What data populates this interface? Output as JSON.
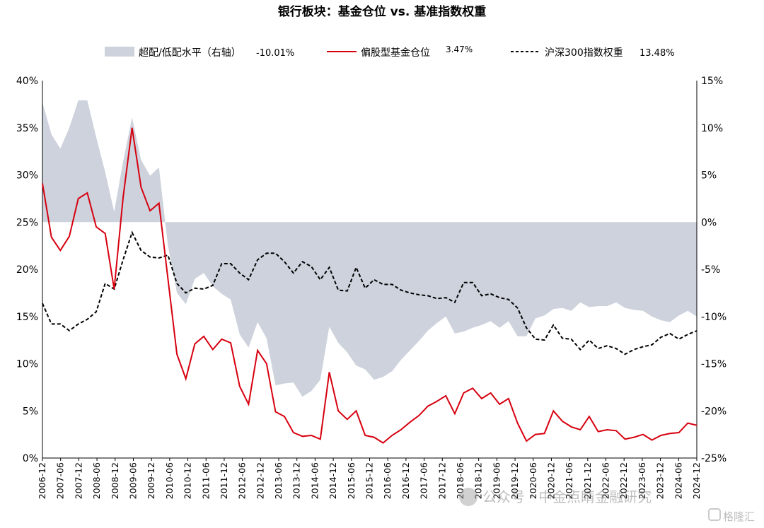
{
  "chart_data": {
    "type": "line",
    "title": "银行板块：基金仓位 vs. 基准指数权重",
    "legend": [
      {
        "key": "area",
        "label": "超配/低配水平（右轴）",
        "value": "-10.01%",
        "color": "#cdd2dc"
      },
      {
        "key": "fund",
        "label": "偏股型基金仓位",
        "value": "3.47%",
        "color": "#d7000f"
      },
      {
        "key": "csi",
        "label": "沪深300指数权重",
        "value": "13.48%",
        "color": "#000000"
      }
    ],
    "left_axis": {
      "min": 0,
      "max": 40,
      "ticks": [
        "0%",
        "5%",
        "10%",
        "15%",
        "20%",
        "25%",
        "30%",
        "35%",
        "40%"
      ]
    },
    "right_axis": {
      "min": -25,
      "max": 15,
      "ticks": [
        "-25%",
        "-20%",
        "-15%",
        "-10%",
        "-5%",
        "0%",
        "5%",
        "10%",
        "15%"
      ]
    },
    "x_tick_labels": [
      "2006-12",
      "2007-06",
      "2007-12",
      "2008-06",
      "2008-12",
      "2009-06",
      "2009-12",
      "2010-06",
      "2010-12",
      "2011-06",
      "2011-12",
      "2012-06",
      "2012-12",
      "2013-06",
      "2013-12",
      "2014-06",
      "2014-12",
      "2015-06",
      "2015-12",
      "2016-06",
      "2016-12",
      "2017-06",
      "2017-12",
      "2018-06",
      "2018-12",
      "2019-06",
      "2019-12",
      "2020-06",
      "2020-12",
      "2021-06",
      "2021-12",
      "2022-06",
      "2022-12",
      "2023-06",
      "2023-12",
      "2024-06",
      "2024-12"
    ],
    "series": [
      {
        "name": "偏股型基金仓位",
        "axis": "left",
        "values": [
          29.1,
          23.4,
          22.0,
          23.5,
          27.5,
          28.1,
          24.5,
          23.8,
          17.9,
          27.6,
          35.0,
          28.7,
          26.2,
          27.0,
          19.0,
          11.0,
          8.4,
          12.1,
          12.9,
          11.5,
          12.6,
          12.2,
          7.6,
          5.7,
          11.4,
          10.0,
          4.9,
          4.4,
          2.7,
          2.3,
          2.4,
          2.0,
          9.1,
          5.0,
          4.1,
          5.0,
          2.4,
          2.2,
          1.6,
          2.4,
          3.0,
          3.8,
          4.5,
          5.5,
          6.0,
          6.6,
          4.7,
          6.9,
          7.4,
          6.3,
          6.9,
          5.7,
          6.3,
          3.7,
          1.8,
          2.5,
          2.6,
          5.0,
          3.9,
          3.3,
          3.0,
          4.4,
          2.8,
          3.0,
          2.9,
          2.0,
          2.2,
          2.5,
          1.9,
          2.4,
          2.6,
          2.7,
          3.7,
          3.47
        ]
      },
      {
        "name": "沪深300指数权重",
        "axis": "left",
        "values": [
          16.4,
          14.2,
          14.2,
          13.5,
          14.2,
          14.7,
          15.5,
          18.5,
          17.9,
          21.0,
          23.9,
          22.0,
          21.3,
          21.2,
          21.5,
          18.5,
          17.5,
          18.0,
          17.9,
          18.3,
          20.6,
          20.6,
          19.6,
          18.9,
          21.0,
          21.7,
          21.7,
          20.8,
          19.6,
          20.8,
          20.3,
          18.9,
          20.2,
          17.8,
          17.7,
          20.2,
          18.0,
          18.9,
          18.4,
          18.4,
          17.8,
          17.5,
          17.3,
          17.2,
          16.9,
          17.0,
          16.5,
          18.6,
          18.6,
          17.2,
          17.4,
          17.0,
          16.8,
          15.9,
          13.8,
          12.6,
          12.5,
          14.1,
          12.7,
          12.6,
          11.5,
          12.5,
          11.6,
          11.9,
          11.6,
          11.0,
          11.5,
          11.8,
          12.0,
          12.8,
          13.2,
          12.6,
          13.1,
          13.48
        ]
      },
      {
        "name": "超配/低配水平（右轴）",
        "axis": "right",
        "values": [
          12.7,
          9.3,
          7.8,
          10.0,
          12.9,
          12.9,
          9.0,
          5.3,
          1.1,
          6.4,
          11.1,
          6.6,
          4.9,
          5.8,
          -2.5,
          -7.5,
          -8.7,
          -6.0,
          -5.4,
          -6.8,
          -7.6,
          -8.2,
          -11.9,
          -13.3,
          -10.6,
          -12.3,
          -17.3,
          -17.1,
          -17.0,
          -18.5,
          -17.9,
          -16.7,
          -11.1,
          -12.8,
          -13.8,
          -15.2,
          -15.6,
          -16.7,
          -16.4,
          -15.8,
          -14.6,
          -13.6,
          -12.6,
          -11.5,
          -10.7,
          -10.0,
          -11.8,
          -11.6,
          -11.2,
          -10.9,
          -10.5,
          -11.2,
          -10.5,
          -12.1,
          -12.1,
          -10.2,
          -9.9,
          -9.2,
          -9.1,
          -9.4,
          -8.5,
          -9.0,
          -8.9,
          -8.9,
          -8.5,
          -9.1,
          -9.3,
          -9.4,
          -10.0,
          -10.4,
          -10.6,
          -9.9,
          -9.4,
          -10.01
        ]
      }
    ],
    "grid": false,
    "legend_position": "top"
  },
  "watermark": {
    "text": "公众号 · 中金点睛金融研究",
    "badge": "格隆汇"
  }
}
